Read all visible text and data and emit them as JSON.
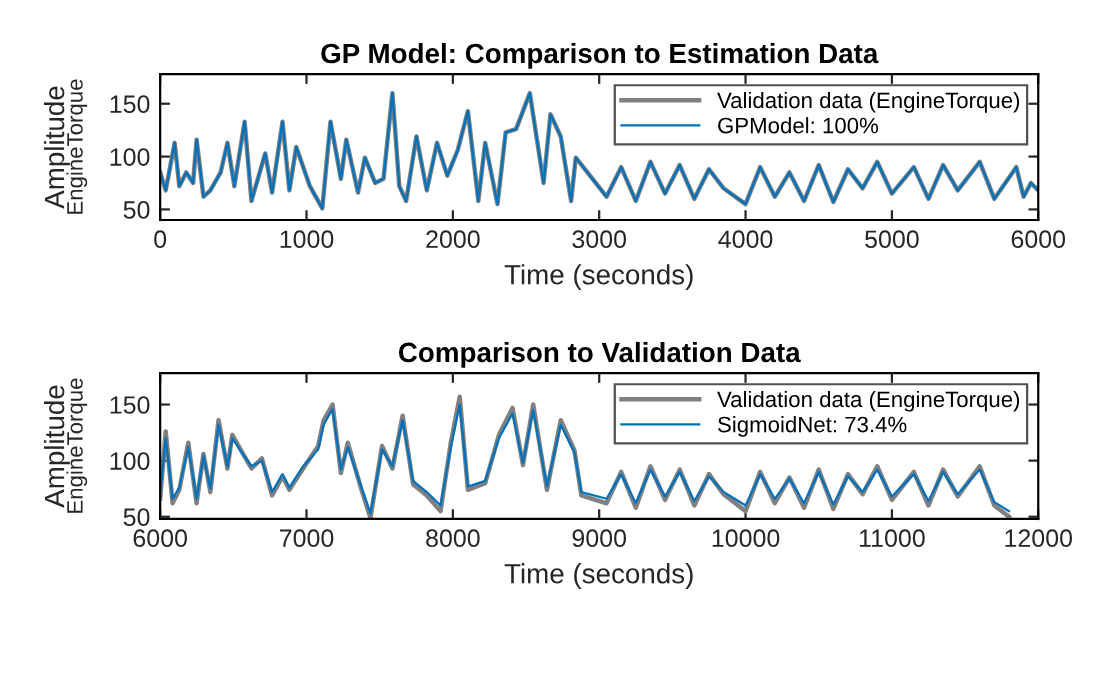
{
  "chart_data": [
    {
      "type": "line",
      "title": "GP Model: Comparison to Estimation Data",
      "xlabel": "Time (seconds)",
      "ylabel": "Amplitude",
      "annotations": [
        "EngineTorque"
      ],
      "x": [
        0,
        38,
        99,
        131,
        178,
        225,
        249,
        296,
        343,
        413,
        460,
        507,
        577,
        624,
        718,
        765,
        836,
        883,
        930,
        1023,
        1108,
        1164,
        1235,
        1272,
        1352,
        1399,
        1469,
        1526,
        1587,
        1634,
        1681,
        1751,
        1822,
        1892,
        1962,
        2033,
        2103,
        2174,
        2221,
        2305,
        2361,
        2432,
        2526,
        2620,
        2667,
        2737,
        2808,
        2840,
        3050,
        3150,
        3250,
        3350,
        3450,
        3550,
        3650,
        3750,
        3850,
        4000,
        4100,
        4200,
        4300,
        4400,
        4500,
        4600,
        4700,
        4800,
        4900,
        5000,
        5150,
        5250,
        5350,
        5450,
        5600,
        5700,
        5850,
        5900,
        5950,
        6000
      ],
      "xlim": [
        0,
        6000
      ],
      "xticks": [
        0,
        1000,
        2000,
        3000,
        4000,
        5000,
        6000
      ],
      "ylim": [
        40,
        178
      ],
      "yticks": [
        50,
        100,
        150
      ],
      "legend": "top right",
      "series": [
        {
          "name": "Validation data (EngineTorque)",
          "color": "#808080",
          "values": [
            85,
            68,
            113,
            72,
            85,
            75,
            116,
            62,
            68,
            85,
            113,
            72,
            133,
            58,
            103,
            66,
            133,
            68,
            109,
            72,
            51,
            133,
            79,
            116,
            66,
            99,
            75,
            79,
            160,
            72,
            58,
            119,
            68,
            113,
            82,
            106,
            143,
            58,
            113,
            55,
            123,
            126,
            160,
            75,
            140,
            119,
            58,
            99,
            62,
            90,
            58,
            95,
            65,
            92,
            60,
            88,
            70,
            55,
            90,
            62,
            85,
            58,
            92,
            57,
            88,
            70,
            95,
            65,
            90,
            60,
            92,
            68,
            95,
            60,
            90,
            62,
            75,
            68
          ]
        },
        {
          "name": "GPModel: 100%",
          "color": "#0072bd",
          "values": [
            85,
            68,
            113,
            72,
            85,
            75,
            116,
            62,
            68,
            85,
            113,
            72,
            133,
            58,
            103,
            66,
            133,
            68,
            109,
            72,
            51,
            133,
            79,
            116,
            66,
            99,
            75,
            79,
            160,
            72,
            58,
            119,
            68,
            113,
            82,
            106,
            143,
            58,
            113,
            55,
            123,
            126,
            160,
            75,
            140,
            119,
            58,
            99,
            62,
            90,
            58,
            95,
            65,
            92,
            60,
            88,
            70,
            55,
            90,
            62,
            85,
            58,
            92,
            57,
            88,
            70,
            95,
            65,
            90,
            60,
            92,
            68,
            95,
            60,
            90,
            62,
            75,
            68
          ]
        }
      ]
    },
    {
      "type": "line",
      "title": "Comparison to Validation Data",
      "xlabel": "Time (seconds)",
      "ylabel": "Amplitude",
      "annotations": [
        "EngineTorque"
      ],
      "x": [
        6000,
        6038,
        6085,
        6131,
        6192,
        6249,
        6296,
        6343,
        6399,
        6460,
        6493,
        6554,
        6624,
        6695,
        6765,
        6836,
        6883,
        6977,
        7080,
        7117,
        7178,
        7235,
        7282,
        7376,
        7437,
        7516,
        7587,
        7657,
        7728,
        7822,
        7916,
        7986,
        8047,
        8103,
        8221,
        8315,
        8408,
        8479,
        8549,
        8643,
        8737,
        8831,
        8878,
        9050,
        9150,
        9250,
        9350,
        9450,
        9550,
        9650,
        9750,
        9850,
        10000,
        10100,
        10200,
        10300,
        10400,
        10500,
        10600,
        10700,
        10800,
        10900,
        11000,
        11150,
        11250,
        11350,
        11450,
        11600,
        11700,
        11800
      ],
      "xlim": [
        6000,
        12000
      ],
      "xticks": [
        6000,
        7000,
        8000,
        9000,
        10000,
        11000,
        12000
      ],
      "ylim": [
        48,
        178
      ],
      "yticks": [
        50,
        100,
        150
      ],
      "legend": "top right",
      "series": [
        {
          "name": "Validation data (EngineTorque)",
          "color": "#808080",
          "values": [
            66,
            126,
            62,
            74,
            116,
            62,
            106,
            72,
            136,
            93,
            123,
            109,
            93,
            102,
            69,
            86,
            74,
            93,
            113,
            136,
            150,
            89,
            116,
            74,
            49,
            113,
            93,
            140,
            79,
            69,
            55,
            116,
            157,
            74,
            80,
            123,
            147,
            96,
            150,
            74,
            136,
            109,
            69,
            62,
            90,
            58,
            95,
            65,
            92,
            60,
            88,
            70,
            55,
            90,
            62,
            85,
            58,
            92,
            57,
            88,
            70,
            95,
            65,
            90,
            60,
            92,
            68,
            95,
            60,
            50
          ]
        },
        {
          "name": "SigmoidNet: 73.4%",
          "color": "#0072bd",
          "values": [
            70,
            120,
            66,
            76,
            112,
            66,
            104,
            75,
            132,
            95,
            120,
            108,
            95,
            100,
            72,
            88,
            76,
            95,
            110,
            132,
            146,
            92,
            112,
            76,
            53,
            110,
            95,
            136,
            82,
            72,
            60,
            112,
            150,
            77,
            82,
            120,
            142,
            98,
            145,
            77,
            132,
            107,
            72,
            66,
            88,
            62,
            92,
            68,
            90,
            64,
            86,
            72,
            60,
            88,
            66,
            84,
            62,
            90,
            61,
            86,
            72,
            92,
            68,
            88,
            64,
            90,
            70,
            92,
            63,
            55
          ]
        }
      ]
    }
  ]
}
